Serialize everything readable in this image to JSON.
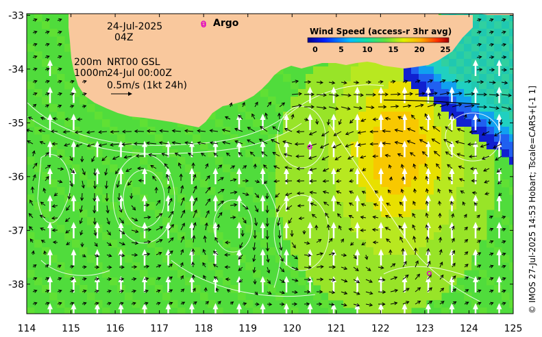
{
  "map": {
    "lon_ticks": [
      "114",
      "115",
      "116",
      "117",
      "118",
      "119",
      "120",
      "121",
      "122",
      "123",
      "124",
      "125"
    ],
    "lat_ticks": [
      "-33",
      "-34",
      "-35",
      "-36",
      "-37",
      "-38"
    ],
    "lon_range": [
      114,
      125
    ],
    "lat_range": [
      -38.55,
      -32.97
    ]
  },
  "annotations": {
    "date": "24-Jul-2025",
    "hour": "04Z",
    "depth_200": "200m",
    "depth_1000": "1000m",
    "product": "NRT00 GSL",
    "product_time": "24-Jul 00:00Z",
    "scale": "0.5m/s (1kt 24h)",
    "argo_label": "Argo"
  },
  "legend": {
    "title": "Wind Speed (access-r 3hr avg)",
    "ticks": [
      "0",
      "5",
      "10",
      "15",
      "20",
      "25"
    ]
  },
  "credit": "© IMOS 27-Jul-2025 14:53 Hobart; Tscale=CARS+[-1 1]",
  "colors": {
    "land": "#f9c89d",
    "argo": "#e000c0"
  },
  "argo_floats": [
    {
      "lon": 118.0,
      "lat": -33.18
    },
    {
      "lon": 120.4,
      "lat": -35.45
    },
    {
      "lon": 123.1,
      "lat": -37.8
    }
  ]
}
